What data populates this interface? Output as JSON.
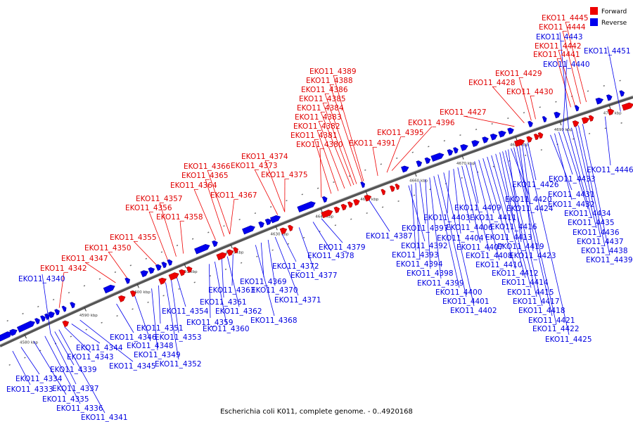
{
  "caption": "Escherichia coli K011, complete genome. - 0..4920168",
  "legend": {
    "forward": {
      "label": "Forward",
      "color": "#ee0000"
    },
    "reverse": {
      "label": "Reverse",
      "color": "#0000ee"
    }
  },
  "ticks": [
    "4580 kbp",
    "4590 kbp",
    "4600 kbp",
    "4610 kbp",
    "4620 kbp",
    "4630 kbp",
    "4640 kbp",
    "4650 kbp",
    "4660 kbp",
    "4670 kbp",
    "4680 kbp",
    "4690 kbp",
    "4700 kbp"
  ],
  "forward_labels": [
    "EKO11_4342",
    "EKO11_4347",
    "EKO11_4350",
    "EKO11_4355",
    "EKO11_4356",
    "EKO11_4357",
    "EKO11_4358",
    "EKO11_4364",
    "EKO11_4365",
    "EKO11_4366",
    "EKO11_4367",
    "EKO11_4373",
    "EKO11_4374",
    "EKO11_4375",
    "EKO11_4380",
    "EKO11_4381",
    "EKO11_4382",
    "EKO11_4383",
    "EKO11_4384",
    "EKO11_4385",
    "EKO11_4386",
    "EKO11_4388",
    "EKO11_4389",
    "EKO11_4391",
    "EKO11_4395",
    "EKO11_4396",
    "EKO11_4427",
    "EKO11_4428",
    "EKO11_4429",
    "EKO11_4430",
    "EKO11_4441",
    "EKO11_4442",
    "EKO11_4444",
    "EKO11_4445"
  ],
  "reverse_labels": [
    "EKO11_4333",
    "EKO11_4334",
    "EKO11_4335",
    "EKO11_4336",
    "EKO11_4337",
    "EKO11_4339",
    "EKO11_4340",
    "EKO11_4341",
    "EKO11_4343",
    "EKO11_4344",
    "EKO11_4345",
    "EKO11_4346",
    "EKO11_4348",
    "EKO11_4349",
    "EKO11_4351",
    "EKO11_4352",
    "EKO11_4353",
    "EKO11_4354",
    "EKO11_4359",
    "EKO11_4360",
    "EKO11_4361",
    "EKO11_4362",
    "EKO11_4363",
    "EKO11_4368",
    "EKO11_4369",
    "EKO11_4370",
    "EKO11_4371",
    "EKO11_4372",
    "EKO11_4377",
    "EKO11_4378",
    "EKO11_4379",
    "EKO11_4387",
    "EKO11_4392",
    "EKO11_4393",
    "EKO11_4394",
    "EKO11_4397",
    "EKO11_4398",
    "EKO11_4399",
    "EKO11_4400",
    "EKO11_4401",
    "EKO11_4402",
    "EKO11_4403",
    "EKO11_4404",
    "EKO11_4406",
    "EKO11_4407",
    "EKO11_4408",
    "EKO11_4409",
    "EKO11_4410",
    "EKO11_4411",
    "EKO11_4412",
    "EKO11_4413",
    "EKO11_4414",
    "EKO11_4415",
    "EKO11_4416",
    "EKO11_4417",
    "EKO11_4418",
    "EKO11_4419",
    "EKO11_4420",
    "EKO11_4421",
    "EKO11_4422",
    "EKO11_4423",
    "EKO11_4424",
    "EKO11_4425",
    "EKO11_4426",
    "EKO11_4431",
    "EKO11_4432",
    "EKO11_4433",
    "EKO11_4434",
    "EKO11_4435",
    "EKO11_4436",
    "EKO11_4437",
    "EKO11_4438",
    "EKO11_4439",
    "EKO11_4440",
    "EKO11_4443",
    "EKO11_4446",
    "EKO11_4451"
  ]
}
